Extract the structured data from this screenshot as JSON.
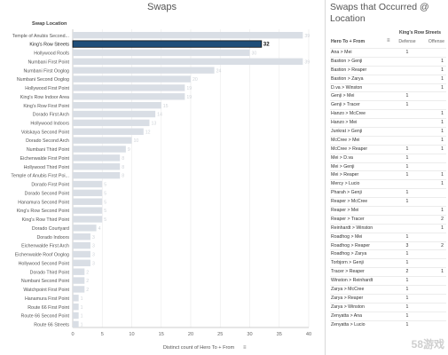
{
  "left_title": "Swaps",
  "right_title": "Swaps that Occurred @ Location",
  "chart_data": {
    "type": "bar",
    "orientation": "horizontal",
    "title": "Swaps",
    "row_header": "Swap Location",
    "xlabel": "Distinct count of Hero To + From",
    "xlim": [
      0,
      40
    ],
    "xticks": [
      "0",
      "5",
      "10",
      "15",
      "20",
      "25",
      "30",
      "35",
      "40"
    ],
    "categories": [
      "Temple of Anubis Second...",
      "King's Row Streets",
      "Hollywood Roofs",
      "Numbani First Point",
      "Numbani First Ooglog",
      "Numbani Second Ooglog",
      "Hollywood First Point",
      "King's Row Indoor Area",
      "King's Row First Point",
      "Dorado First Arch",
      "Hollywood Indoors",
      "Volskaya Second Point",
      "Dorado Second Arch",
      "Numbani Third Point",
      "Eichenwalde First Point",
      "Hollywood Third Point",
      "Temple of Anubis First Poi...",
      "Dorado First Point",
      "Dorado Second Point",
      "Hanamura Second Point",
      "King's Row Second Point",
      "King's Row Third Point",
      "Dorado Courtyard",
      "Dorado Indoors",
      "Eichenwalde First Arch",
      "Eichenwalde Roof Ooglog",
      "Hollywood Second Point",
      "Dorado Third Point",
      "Numbani Second Point",
      "Watchpoint First Point",
      "Hanamura First Point",
      "Route 66 First Point",
      "Route 66 Second Point",
      "Route 66 Streets"
    ],
    "values": [
      39,
      32,
      30,
      39,
      24,
      20,
      19,
      19,
      15,
      14,
      13,
      12,
      10,
      9,
      8,
      8,
      8,
      5,
      5,
      5,
      5,
      5,
      4,
      3,
      3,
      3,
      3,
      2,
      2,
      2,
      1,
      1,
      1,
      1
    ],
    "highlight_index": 1,
    "highlight_label": "32",
    "colors": {
      "bar": "#d9dee5",
      "highlight": "#1f4e79",
      "highlight_outline": "#111111"
    }
  },
  "table": {
    "col_group": "King's Row Streets",
    "col_header_hero": "Hero To + From",
    "sort_icon": "sort-icon",
    "col_defense": "Defense",
    "col_offense": "Offense",
    "rows": [
      {
        "name": "Ana > Mei",
        "def": "1",
        "off": ""
      },
      {
        "name": "Bastion > Genji",
        "def": "",
        "off": "1"
      },
      {
        "name": "Bastion > Reaper",
        "def": "",
        "off": "1"
      },
      {
        "name": "Bastion > Zarya",
        "def": "",
        "off": "1"
      },
      {
        "name": "D.va > Winston",
        "def": "",
        "off": "1"
      },
      {
        "name": "Genji > Mei",
        "def": "1",
        "off": ""
      },
      {
        "name": "Genji > Tracer",
        "def": "1",
        "off": ""
      },
      {
        "name": "Hanzo > McCree",
        "def": "",
        "off": "1"
      },
      {
        "name": "Hanzo > Mei",
        "def": "",
        "off": "1"
      },
      {
        "name": "Junkrat > Genji",
        "def": "",
        "off": "1"
      },
      {
        "name": "McCree > Mei",
        "def": "",
        "off": "1"
      },
      {
        "name": "McCree > Reaper",
        "def": "1",
        "off": "1"
      },
      {
        "name": "Mei > D.va",
        "def": "1",
        "off": ""
      },
      {
        "name": "Mei > Genji",
        "def": "1",
        "off": ""
      },
      {
        "name": "Mei > Reaper",
        "def": "1",
        "off": "1"
      },
      {
        "name": "Mercy > Lucio",
        "def": "",
        "off": "1"
      },
      {
        "name": "Pharah > Genji",
        "def": "1",
        "off": ""
      },
      {
        "name": "Reaper > McCree",
        "def": "1",
        "off": ""
      },
      {
        "name": "Reaper > Mei",
        "def": "",
        "off": "1"
      },
      {
        "name": "Reaper > Tracer",
        "def": "",
        "off": "2"
      },
      {
        "name": "Reinhardt > Winston",
        "def": "",
        "off": "1"
      },
      {
        "name": "Roadhog > Mei",
        "def": "1",
        "off": ""
      },
      {
        "name": "Roadhog > Reaper",
        "def": "3",
        "off": "2"
      },
      {
        "name": "Roadhog > Zarya",
        "def": "1",
        "off": ""
      },
      {
        "name": "Torbjorn > Genji",
        "def": "1",
        "off": ""
      },
      {
        "name": "Tracer > Reaper",
        "def": "2",
        "off": "1"
      },
      {
        "name": "Winston > Reinhardt",
        "def": "1",
        "off": ""
      },
      {
        "name": "Zarya > McCree",
        "def": "1",
        "off": ""
      },
      {
        "name": "Zarya > Reaper",
        "def": "1",
        "off": ""
      },
      {
        "name": "Zarya > Winston",
        "def": "1",
        "off": ""
      },
      {
        "name": "Zenyatta > Ana",
        "def": "1",
        "off": ""
      },
      {
        "name": "Zenyatta > Lucio",
        "def": "1",
        "off": ""
      }
    ]
  },
  "watermark": "58游戏"
}
